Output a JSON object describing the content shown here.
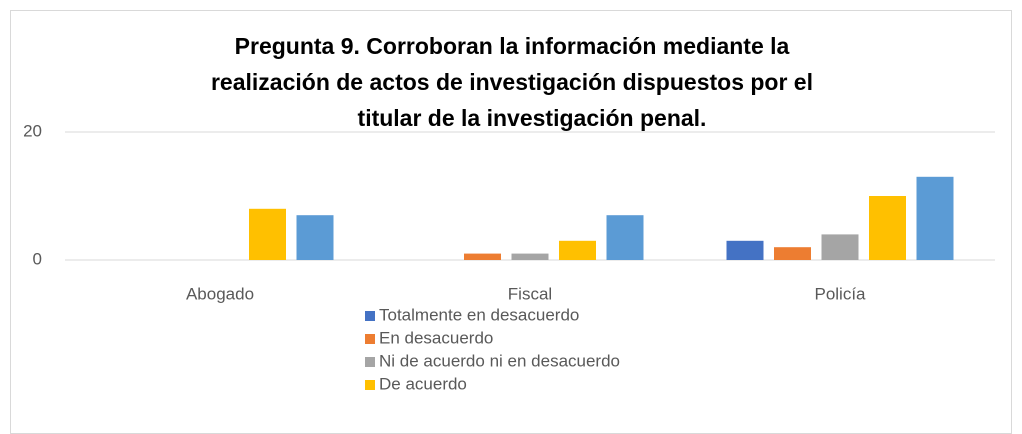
{
  "chart_data": {
    "type": "bar",
    "title": [
      "Pregunta 9. Corroboran la información mediante la",
      "realización de actos de investigación dispuestos por el",
      "titular de la investigación penal."
    ],
    "categories": [
      "Abogado",
      "Fiscal",
      "Policía"
    ],
    "series": [
      {
        "name": "Totalmente en desacuerdo",
        "color": "#4472c4",
        "values": [
          0,
          0,
          3
        ]
      },
      {
        "name": "En desacuerdo",
        "color": "#ed7d31",
        "values": [
          0,
          1,
          2
        ]
      },
      {
        "name": "Ni de acuerdo ni en desacuerdo",
        "color": "#a5a5a5",
        "values": [
          0,
          1,
          4
        ]
      },
      {
        "name": "De acuerdo",
        "color": "#ffc000",
        "values": [
          8,
          3,
          10
        ]
      },
      {
        "color": "#5b9bd5",
        "values": [
          7,
          7,
          13
        ]
      }
    ],
    "ylim": [
      0,
      20
    ],
    "yticks": [
      0,
      20
    ],
    "grid": true
  }
}
